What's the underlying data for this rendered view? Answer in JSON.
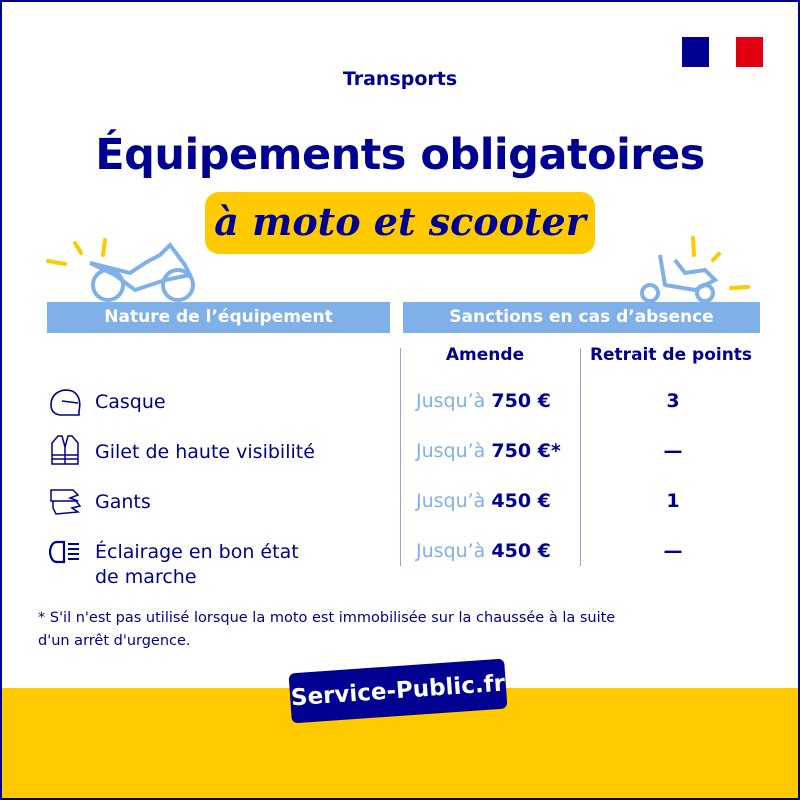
{
  "colors": {
    "navy": "#000091",
    "light_blue": "#7fb1e8",
    "yellow": "#ffca00",
    "flag_red": "#e1000f"
  },
  "category": "Transports",
  "title": "Équipements obligatoires",
  "subtitle": "à moto et scooter",
  "table": {
    "col_equipment": "Nature de l’équipement",
    "col_sanctions": "Sanctions en cas d’absence",
    "sub_fine": "Amende",
    "sub_points": "Retrait de points",
    "rows": [
      {
        "icon": "helmet-icon",
        "label": "Casque",
        "fine_prefix": "Jusqu’à",
        "fine": "750 €",
        "points": "3"
      },
      {
        "icon": "vest-icon",
        "label": "Gilet de haute visibilité",
        "fine_prefix": "Jusqu’à",
        "fine": "750 €*",
        "points": "—"
      },
      {
        "icon": "gloves-icon",
        "label": "Gants",
        "fine_prefix": "Jusqu’à",
        "fine": "450 €",
        "points": "1"
      },
      {
        "icon": "headlight-icon",
        "label": "Éclairage en bon état",
        "label2": "de marche",
        "fine_prefix": "Jusqu’à",
        "fine": "450 €",
        "points": "—"
      }
    ]
  },
  "footnote_line1": "* S'il n'est pas utilisé lorsque la moto est immobilisée sur la chaussée à la suite",
  "footnote_line2": "d'un arrêt d'urgence.",
  "brand": "Service-Public.fr"
}
